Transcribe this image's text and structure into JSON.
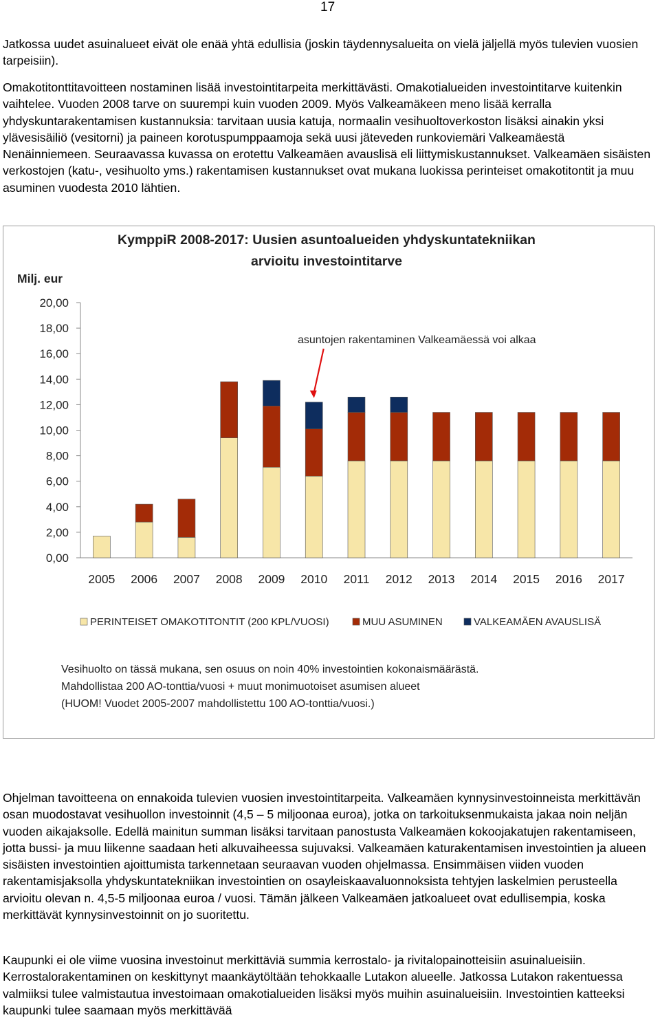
{
  "page_number": "17",
  "paragraph1": "Jatkossa uudet asuinalueet eivät ole enää yhtä edullisia (joskin täydennysalueita on vielä jäljellä myös tulevien vuosien tarpeisiin).",
  "paragraph2": "Omakotitonttitavoitteen nostaminen lisää investointitarpeita merkittävästi. Omakotialueiden investointitarve kuitenkin vaihtelee. Vuoden 2008 tarve on suurempi kuin vuoden 2009. Myös Valkeamäkeen meno lisää kerralla yhdyskuntarakentamisen kustannuksia: tarvitaan uusia katuja, normaalin vesihuoltoverkoston lisäksi ainakin yksi ylävesisäiliö (vesitorni) ja paineen korotuspumppaamoja sekä uusi jäteveden runkoviemäri Valkeamäestä Nenäinniemeen. Seuraavassa kuvassa on erotettu Valkeamäen avauslisä eli liittymiskustannukset. Valkeamäen sisäisten verkostojen (katu-, vesihuolto yms.) rakentamisen kustannukset ovat mukana luokissa perinteiset omakotitontit ja muu asuminen vuodesta 2010 lähtien.",
  "paragraph3": "Ohjelman tavoitteena on ennakoida tulevien vuosien investointitarpeita. Valkeamäen kynnysinvestoinneista merkittävän osan muodostavat vesihuollon investoinnit (4,5 – 5 miljoonaa euroa), jotka on tarkoituksenmukaista jakaa noin neljän vuoden aikajaksolle. Edellä mainitun summan lisäksi tarvitaan panostusta Valkeamäen kokoojakatujen rakentamiseen, jotta bussi- ja muu liikenne saadaan heti alkuvaiheessa sujuvaksi. Valkeamäen katurakentamisen investointien ja alueen sisäisten investointien ajoittumista tarkennetaan seuraavan vuoden ohjelmassa. Ensimmäisen viiden vuoden rakentamisjaksolla yhdyskuntatekniikan investointien on osayleiskaavaluonnoksista tehtyjen laskelmien perusteella arvioitu olevan n. 4,5-5 miljoonaa euroa / vuosi. Tämän jälkeen Valkeamäen jatkoalueet ovat edullisempia, koska merkittävät kynnysinvestoinnit on jo suoritettu.",
  "paragraph4": "Kaupunki ei ole viime vuosina investoinut merkittäviä summia kerrostalo- ja rivitalopainotteisiin asuinalueisiin. Kerrostalorakentaminen on keskittynyt maankäytöltään tehokkaalle Lutakon alueelle. Jatkossa Lutakon rakentuessa valmiiksi tulee valmistautua investoimaan omakotialueiden lisäksi myös muihin asuinalueisiin. Investointien katteeksi kaupunki tulee saamaan myös merkittävää",
  "chart_data": {
    "type": "bar",
    "stacked": true,
    "title_line1": "KymppiR 2008-2017: Uusien asuntoalueiden yhdyskuntatekniikan",
    "title_line2": "arvioitu investointitarve",
    "ylabel": "Milj. eur",
    "ylim": [
      0,
      20
    ],
    "yticks": [
      "0,00",
      "2,00",
      "4,00",
      "6,00",
      "8,00",
      "10,00",
      "12,00",
      "14,00",
      "16,00",
      "18,00",
      "20,00"
    ],
    "categories": [
      "2005",
      "2006",
      "2007",
      "2008",
      "2009",
      "2010",
      "2011",
      "2012",
      "2013",
      "2014",
      "2015",
      "2016",
      "2017"
    ],
    "series": [
      {
        "name": "PERINTEISET OMAKOTITONTIT (200 KPL/VUOSI)",
        "color": "#F7E6A8",
        "values": [
          1.7,
          2.8,
          1.6,
          9.4,
          7.1,
          6.4,
          7.6,
          7.6,
          7.6,
          7.6,
          7.6,
          7.6,
          7.6
        ]
      },
      {
        "name": "MUU ASUMINEN",
        "color": "#A32B07",
        "values": [
          0,
          1.4,
          3.0,
          4.4,
          4.8,
          3.7,
          3.8,
          3.8,
          3.8,
          3.8,
          3.8,
          3.8,
          3.8
        ]
      },
      {
        "name": "VALKEAMÄEN AVAUSLISÄ",
        "color": "#0E2D5E",
        "values": [
          0,
          0,
          0,
          0,
          2.0,
          2.1,
          1.2,
          1.2,
          0,
          0,
          0,
          0,
          0
        ]
      }
    ],
    "annotation": "asuntojen rakentaminen Valkeamäessä voi alkaa",
    "annotation_category": "2010",
    "notes": [
      "Vesihuolto on tässä mukana, sen osuus on noin 40% investointien kokonaismäärästä.",
      "Mahdollistaa 200 AO-tonttia/vuosi + muut monimuotoiset asumisen alueet",
      "(HUOM! Vuodet 2005-2007 mahdollistettu 100 AO-tonttia/vuosi.)"
    ],
    "grid": false,
    "legend_position": "bottom",
    "annotation_color": "#E01010"
  }
}
